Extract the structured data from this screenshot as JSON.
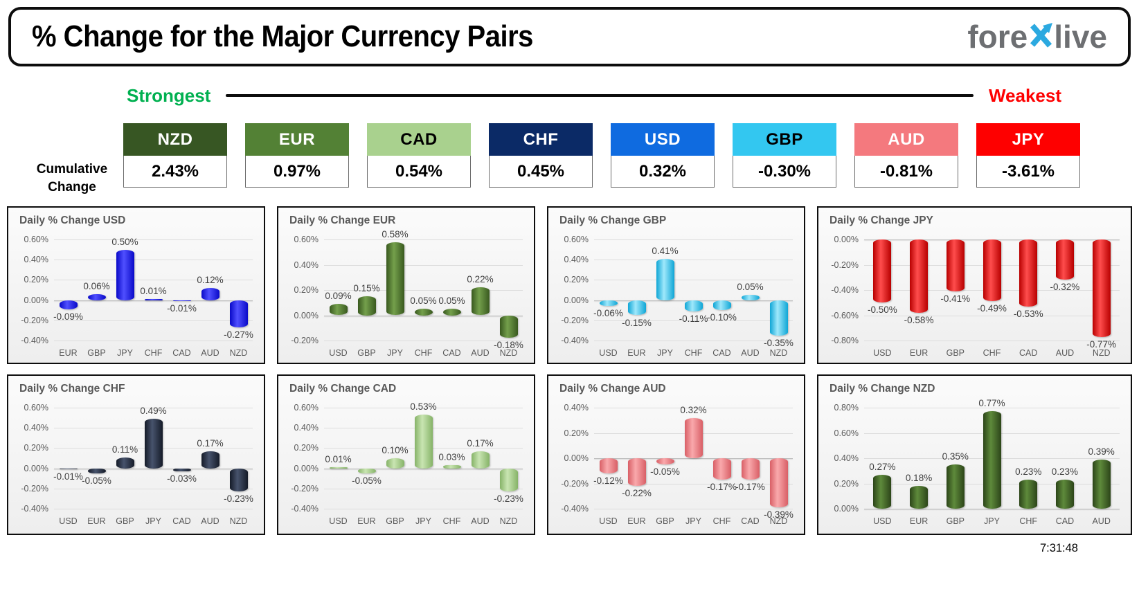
{
  "header": {
    "title": "% Change for the Major Currency Pairs",
    "logo": {
      "fore": "fore",
      "live": "live"
    }
  },
  "legend": {
    "strongest": "Strongest",
    "weakest": "Weakest"
  },
  "cumulative": {
    "label_line1": "Cumulative",
    "label_line2": "Change",
    "items": [
      {
        "code": "NZD",
        "value": "2.43%",
        "bg": "#375623",
        "fg": "#ffffff"
      },
      {
        "code": "EUR",
        "value": "0.97%",
        "bg": "#538135",
        "fg": "#ffffff"
      },
      {
        "code": "CAD",
        "value": "0.54%",
        "bg": "#a9d18e",
        "fg": "#000000"
      },
      {
        "code": "CHF",
        "value": "0.45%",
        "bg": "#0b2a66",
        "fg": "#ffffff"
      },
      {
        "code": "USD",
        "value": "0.32%",
        "bg": "#0f6be0",
        "fg": "#ffffff"
      },
      {
        "code": "GBP",
        "value": "-0.30%",
        "bg": "#33c7f0",
        "fg": "#000000"
      },
      {
        "code": "AUD",
        "value": "-0.81%",
        "bg": "#f4797e",
        "fg": "#ffffff"
      },
      {
        "code": "JPY",
        "value": "-3.61%",
        "bg": "#fe0000",
        "fg": "#ffffff"
      }
    ]
  },
  "timestamp": "7:31:48",
  "accent_colors": {
    "strongest": "#00b050",
    "weakest": "#fe0000",
    "logo_gray": "#6d6f72",
    "logo_blue": "#2ba9e0"
  },
  "chart_data": [
    {
      "type": "bar",
      "currency": "USD",
      "title": "Daily % Change USD",
      "categories": [
        "EUR",
        "GBP",
        "JPY",
        "CHF",
        "CAD",
        "AUD",
        "NZD"
      ],
      "values": [
        -0.09,
        0.06,
        0.5,
        0.01,
        -0.01,
        0.12,
        -0.27
      ],
      "ylim": [
        -0.4,
        0.6
      ],
      "ytick_step": 0.2,
      "grid": true,
      "legend": "none",
      "bar_dark": "#0909c8",
      "bar_base": "#2323f5",
      "bar_light": "#5050ff"
    },
    {
      "type": "bar",
      "currency": "EUR",
      "title": "Daily % Change EUR",
      "categories": [
        "USD",
        "GBP",
        "JPY",
        "CHF",
        "CAD",
        "AUD",
        "NZD"
      ],
      "values": [
        0.09,
        0.15,
        0.58,
        0.05,
        0.05,
        0.22,
        -0.18
      ],
      "ylim": [
        -0.2,
        0.6
      ],
      "ytick_step": 0.2,
      "grid": true,
      "legend": "none",
      "bar_dark": "#39591f",
      "bar_base": "#4e7a32",
      "bar_light": "#74a04c"
    },
    {
      "type": "bar",
      "currency": "GBP",
      "title": "Daily % Change GBP",
      "categories": [
        "USD",
        "EUR",
        "JPY",
        "CHF",
        "CAD",
        "AUD",
        "NZD"
      ],
      "values": [
        -0.06,
        -0.15,
        0.41,
        -0.11,
        -0.1,
        0.05,
        -0.35
      ],
      "ylim": [
        -0.4,
        0.6
      ],
      "ytick_step": 0.2,
      "grid": true,
      "legend": "none",
      "bar_dark": "#0fa6d6",
      "bar_base": "#3fccf4",
      "bar_light": "#9fe8fb"
    },
    {
      "type": "bar",
      "currency": "JPY",
      "title": "Daily % Change JPY",
      "categories": [
        "USD",
        "EUR",
        "GBP",
        "CHF",
        "CAD",
        "AUD",
        "NZD"
      ],
      "values": [
        -0.5,
        -0.58,
        -0.41,
        -0.49,
        -0.53,
        -0.32,
        -0.77
      ],
      "ylim": [
        -0.8,
        0.0
      ],
      "ytick_step": 0.2,
      "grid": true,
      "legend": "none",
      "bar_dark": "#b80000",
      "bar_base": "#f50000",
      "bar_light": "#ff4d4d"
    },
    {
      "type": "bar",
      "currency": "CHF",
      "title": "Daily % Change CHF",
      "categories": [
        "USD",
        "EUR",
        "GBP",
        "JPY",
        "CAD",
        "AUD",
        "NZD"
      ],
      "values": [
        -0.01,
        -0.05,
        0.11,
        0.49,
        -0.03,
        0.17,
        -0.23
      ],
      "ylim": [
        -0.4,
        0.6
      ],
      "ytick_step": 0.2,
      "grid": true,
      "legend": "none",
      "bar_dark": "#151b28",
      "bar_base": "#242e42",
      "bar_light": "#47536c"
    },
    {
      "type": "bar",
      "currency": "CAD",
      "title": "Daily % Change CAD",
      "categories": [
        "USD",
        "EUR",
        "GBP",
        "JPY",
        "CHF",
        "AUD",
        "NZD"
      ],
      "values": [
        0.01,
        -0.05,
        0.1,
        0.53,
        0.03,
        0.17,
        -0.23
      ],
      "ylim": [
        -0.4,
        0.6
      ],
      "ytick_step": 0.2,
      "grid": true,
      "legend": "none",
      "bar_dark": "#86b368",
      "bar_base": "#a9d18e",
      "bar_light": "#c9e5b2"
    },
    {
      "type": "bar",
      "currency": "AUD",
      "title": "Daily % Change AUD",
      "categories": [
        "USD",
        "EUR",
        "GBP",
        "JPY",
        "CHF",
        "CAD",
        "NZD"
      ],
      "values": [
        -0.12,
        -0.22,
        -0.05,
        0.32,
        -0.17,
        -0.17,
        -0.39
      ],
      "ylim": [
        -0.4,
        0.4
      ],
      "ytick_step": 0.2,
      "grid": true,
      "legend": "none",
      "bar_dark": "#d95f66",
      "bar_base": "#f07e83",
      "bar_light": "#f9a9ac"
    },
    {
      "type": "bar",
      "currency": "NZD",
      "title": "Daily % Change NZD",
      "categories": [
        "USD",
        "EUR",
        "GBP",
        "JPY",
        "CHF",
        "CAD",
        "AUD"
      ],
      "values": [
        0.27,
        0.18,
        0.35,
        0.77,
        0.23,
        0.23,
        0.39
      ],
      "ylim": [
        0.0,
        0.8
      ],
      "ytick_step": 0.2,
      "grid": true,
      "legend": "none",
      "bar_dark": "#2c4519",
      "bar_base": "#416628",
      "bar_light": "#5e8a3b"
    }
  ]
}
